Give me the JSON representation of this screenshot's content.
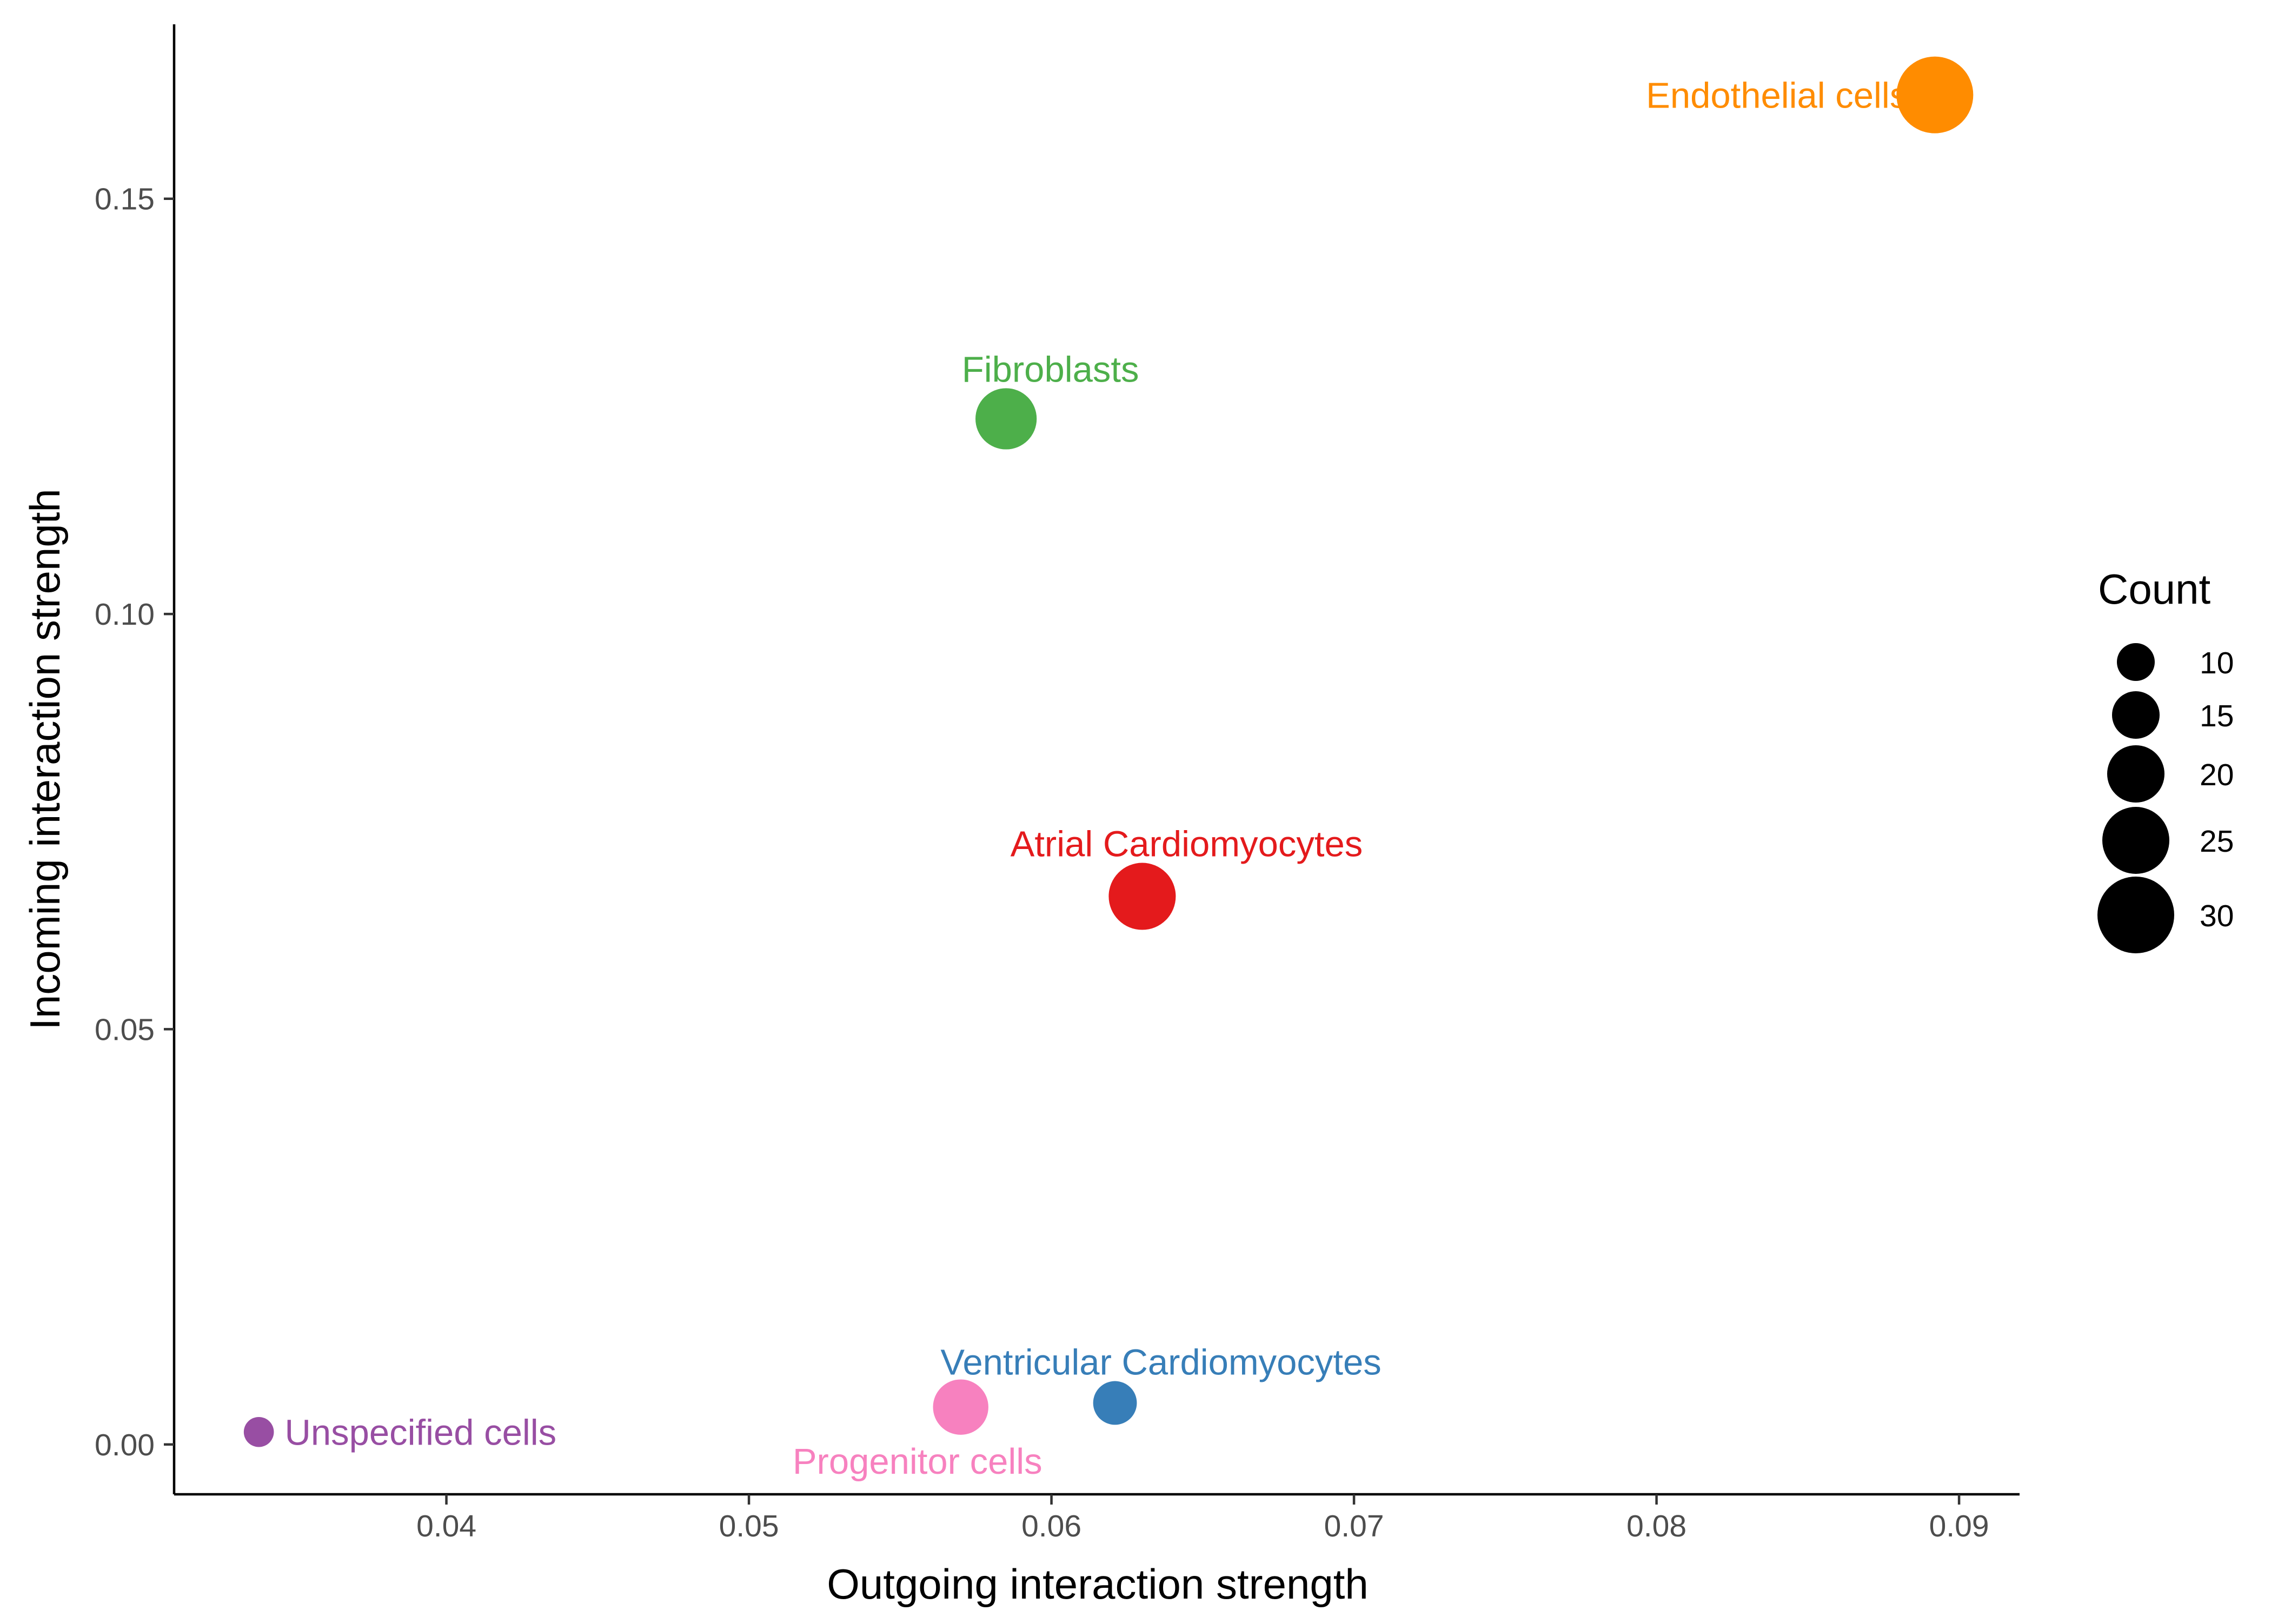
{
  "chart_data": {
    "type": "scatter",
    "title": "",
    "xlabel": "Outgoing interaction strength",
    "ylabel": "Incoming interaction strength",
    "xlim": [
      0.031,
      0.092
    ],
    "ylim": [
      -0.006,
      0.171
    ],
    "x_ticks": [
      0.04,
      0.05,
      0.06,
      0.07,
      0.08,
      0.09
    ],
    "x_tick_labels": [
      "0.04",
      "0.05",
      "0.06",
      "0.07",
      "0.08",
      "0.09"
    ],
    "y_ticks": [
      0.0,
      0.05,
      0.1,
      0.15
    ],
    "y_tick_labels": [
      "0.00",
      "0.05",
      "0.10",
      "0.15"
    ],
    "grid": false,
    "legend_placement": "right",
    "legend": {
      "title": "Count",
      "entries": [
        {
          "label": "10",
          "count": 10
        },
        {
          "label": "15",
          "count": 15
        },
        {
          "label": "20",
          "count": 20
        },
        {
          "label": "25",
          "count": 25
        },
        {
          "label": "30",
          "count": 30
        }
      ]
    },
    "points": [
      {
        "label": "Endothelial cells",
        "x": 0.0892,
        "y": 0.1625,
        "count": 30,
        "color": "#ff8c00",
        "label_pos": "left"
      },
      {
        "label": "Fibroblasts",
        "x": 0.0585,
        "y": 0.1235,
        "count": 22,
        "color": "#4daf4a",
        "label_pos": "above"
      },
      {
        "label": "Atrial Cardiomyocytes",
        "x": 0.063,
        "y": 0.066,
        "count": 25,
        "color": "#e41a1c",
        "label_pos": "above"
      },
      {
        "label": "Ventricular Cardiomyocytes",
        "x": 0.0621,
        "y": 0.005,
        "count": 13,
        "color": "#377eb8",
        "label_pos": "above"
      },
      {
        "label": "Progenitor cells",
        "x": 0.057,
        "y": 0.0045,
        "count": 19,
        "color": "#f781bf",
        "label_pos": "below"
      },
      {
        "label": "Unspecified cells",
        "x": 0.0338,
        "y": 0.0015,
        "count": 6,
        "color": "#984ea3",
        "label_pos": "right"
      }
    ]
  }
}
